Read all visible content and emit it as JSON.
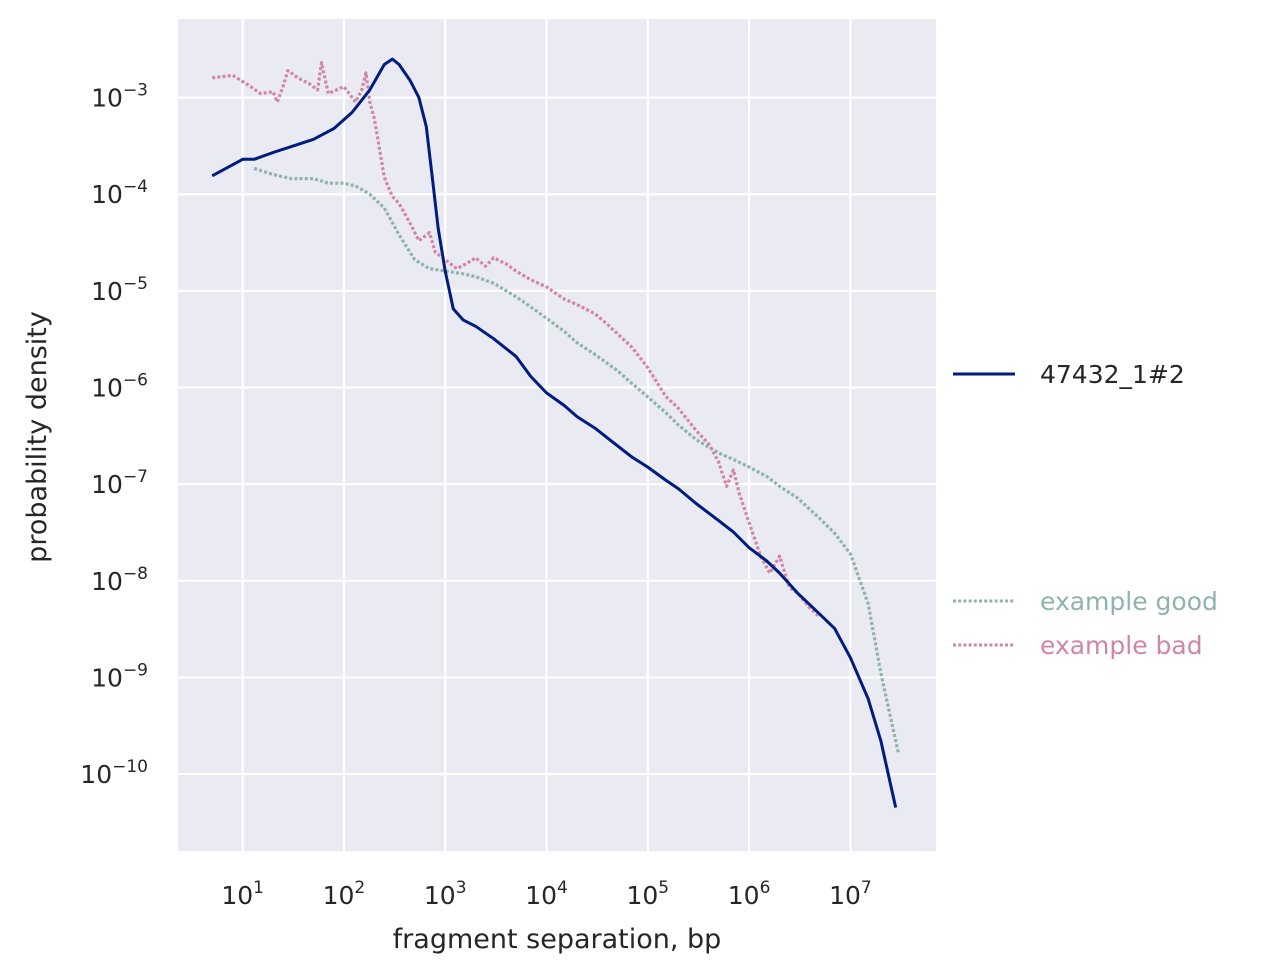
{
  "chart_data": {
    "type": "line",
    "xlabel": "fragment separation, bp",
    "ylabel": "probability density",
    "x_scale": "log",
    "y_scale": "log",
    "xlim": [
      2.3,
      70000000
    ],
    "ylim": [
      1.6e-11,
      0.0065
    ],
    "x_ticks": [
      {
        "exp": "1",
        "value": 10
      },
      {
        "exp": "2",
        "value": 100
      },
      {
        "exp": "3",
        "value": 1000
      },
      {
        "exp": "4",
        "value": 10000
      },
      {
        "exp": "5",
        "value": 100000
      },
      {
        "exp": "6",
        "value": 1000000
      },
      {
        "exp": "7",
        "value": 10000000
      }
    ],
    "y_ticks": [
      {
        "exp": "−3",
        "value": 0.001
      },
      {
        "exp": "−4",
        "value": 0.0001
      },
      {
        "exp": "−5",
        "value": 1e-05
      },
      {
        "exp": "−6",
        "value": 1e-06
      },
      {
        "exp": "−7",
        "value": 1e-07
      },
      {
        "exp": "−8",
        "value": 1e-08
      },
      {
        "exp": "−9",
        "value": 1e-09
      },
      {
        "exp": "−10",
        "value": 1e-10
      }
    ],
    "grid": true,
    "legend_placement": "right",
    "series": [
      {
        "name": "47432_1#2",
        "color": "#001c7f",
        "style": "solid",
        "points": [
          [
            5,
            0.000155
          ],
          [
            10,
            0.00023
          ],
          [
            13,
            0.00023
          ],
          [
            20,
            0.00027
          ],
          [
            30,
            0.00031
          ],
          [
            50,
            0.00037
          ],
          [
            80,
            0.00048
          ],
          [
            120,
            0.0007
          ],
          [
            180,
            0.0012
          ],
          [
            250,
            0.0022
          ],
          [
            300,
            0.0025
          ],
          [
            350,
            0.0022
          ],
          [
            450,
            0.0015
          ],
          [
            550,
            0.001
          ],
          [
            650,
            0.0005
          ],
          [
            750,
            0.00014
          ],
          [
            850,
            4.5e-05
          ],
          [
            1000,
            1.6e-05
          ],
          [
            1200,
            6.5e-06
          ],
          [
            1500,
            5e-06
          ],
          [
            2000,
            4.3e-06
          ],
          [
            3000,
            3.2e-06
          ],
          [
            5000,
            2.1e-06
          ],
          [
            7000,
            1.3e-06
          ],
          [
            10000,
            8.8e-07
          ],
          [
            15000,
            6.5e-07
          ],
          [
            20000,
            5e-07
          ],
          [
            30000,
            3.8e-07
          ],
          [
            50000,
            2.5e-07
          ],
          [
            70000,
            1.9e-07
          ],
          [
            100000,
            1.5e-07
          ],
          [
            150000,
            1.1e-07
          ],
          [
            200000,
            9e-08
          ],
          [
            300000,
            6.3e-08
          ],
          [
            500000,
            4.2e-08
          ],
          [
            700000,
            3.2e-08
          ],
          [
            1000000,
            2.2e-08
          ],
          [
            1500000,
            1.6e-08
          ],
          [
            2000000,
            1.2e-08
          ],
          [
            3000000,
            7.5e-09
          ],
          [
            5000000,
            4.5e-09
          ],
          [
            7000000,
            3.2e-09
          ],
          [
            10000000,
            1.6e-09
          ],
          [
            15000000,
            6e-10
          ],
          [
            20000000,
            2.2e-10
          ],
          [
            28000000,
            4.5e-11
          ]
        ]
      },
      {
        "name": "example good",
        "color": "#8eb3ac",
        "style": "dotted",
        "points": [
          [
            13,
            0.000185
          ],
          [
            20,
            0.00016
          ],
          [
            30,
            0.000145
          ],
          [
            50,
            0.000145
          ],
          [
            70,
            0.00013
          ],
          [
            100,
            0.00013
          ],
          [
            130,
            0.000122
          ],
          [
            180,
            0.0001
          ],
          [
            250,
            7.2e-05
          ],
          [
            350,
            3.8e-05
          ],
          [
            500,
            2.1e-05
          ],
          [
            700,
            1.7e-05
          ],
          [
            1000,
            1.6e-05
          ],
          [
            1500,
            1.5e-05
          ],
          [
            2000,
            1.4e-05
          ],
          [
            3000,
            1.2e-05
          ],
          [
            5000,
            8.7e-06
          ],
          [
            7000,
            6.8e-06
          ],
          [
            10000,
            5.2e-06
          ],
          [
            15000,
            3.8e-06
          ],
          [
            20000,
            2.9e-06
          ],
          [
            30000,
            2.2e-06
          ],
          [
            50000,
            1.5e-06
          ],
          [
            70000,
            1.1e-06
          ],
          [
            100000,
            8e-07
          ],
          [
            150000,
            5.5e-07
          ],
          [
            200000,
            4.1e-07
          ],
          [
            300000,
            2.9e-07
          ],
          [
            500000,
            2.1e-07
          ],
          [
            700000,
            1.8e-07
          ],
          [
            1000000,
            1.5e-07
          ],
          [
            1500000,
            1.2e-07
          ],
          [
            2000000,
            9.5e-08
          ],
          [
            3000000,
            7.2e-08
          ],
          [
            5000000,
            4.4e-08
          ],
          [
            7000000,
            3.1e-08
          ],
          [
            10000000,
            1.9e-08
          ],
          [
            15000000,
            5.8e-09
          ],
          [
            20000000,
            1.1e-09
          ],
          [
            30000000,
            1.6e-10
          ]
        ]
      },
      {
        "name": "example bad",
        "color": "#d185a8",
        "style": "dotted",
        "points": [
          [
            5,
            0.0016
          ],
          [
            8,
            0.0017
          ],
          [
            12,
            0.0013
          ],
          [
            15,
            0.0011
          ],
          [
            20,
            0.00115
          ],
          [
            22,
            0.0009
          ],
          [
            25,
            0.0013
          ],
          [
            28,
            0.0019
          ],
          [
            35,
            0.0016
          ],
          [
            45,
            0.0014
          ],
          [
            55,
            0.0012
          ],
          [
            60,
            0.0023
          ],
          [
            70,
            0.0011
          ],
          [
            100,
            0.0013
          ],
          [
            130,
            0.0009
          ],
          [
            150,
            0.0012
          ],
          [
            165,
            0.0018
          ],
          [
            180,
            0.0009
          ],
          [
            200,
            0.0006
          ],
          [
            250,
            0.00015
          ],
          [
            300,
            9.5e-05
          ],
          [
            350,
            8e-05
          ],
          [
            450,
            5e-05
          ],
          [
            550,
            3.3e-05
          ],
          [
            700,
            4e-05
          ],
          [
            800,
            2.5e-05
          ],
          [
            1000,
            2.1e-05
          ],
          [
            1300,
            1.7e-05
          ],
          [
            1600,
            1.9e-05
          ],
          [
            2000,
            2.2e-05
          ],
          [
            2500,
            1.8e-05
          ],
          [
            3000,
            2.2e-05
          ],
          [
            4000,
            1.9e-05
          ],
          [
            5000,
            1.6e-05
          ],
          [
            7000,
            1.3e-05
          ],
          [
            10000,
            1.1e-05
          ],
          [
            15000,
            8.2e-06
          ],
          [
            20000,
            7.2e-06
          ],
          [
            30000,
            5.8e-06
          ],
          [
            40000,
            4.5e-06
          ],
          [
            50000,
            3.6e-06
          ],
          [
            70000,
            2.6e-06
          ],
          [
            100000,
            1.6e-06
          ],
          [
            150000,
            8.1e-07
          ],
          [
            200000,
            6.1e-07
          ],
          [
            300000,
            3.6e-07
          ],
          [
            400000,
            2.6e-07
          ],
          [
            500000,
            1.7e-07
          ],
          [
            600000,
            9.5e-08
          ],
          [
            700000,
            1.4e-07
          ],
          [
            800000,
            8e-08
          ],
          [
            1000000,
            4e-08
          ],
          [
            1300000,
            1.8e-08
          ],
          [
            1600000,
            1.2e-08
          ],
          [
            2000000,
            1.8e-08
          ],
          [
            2500000,
            8.5e-09
          ],
          [
            3000000,
            7.5e-09
          ],
          [
            4000000,
            5.2e-09
          ],
          [
            5000000,
            4.2e-09
          ]
        ]
      }
    ]
  }
}
